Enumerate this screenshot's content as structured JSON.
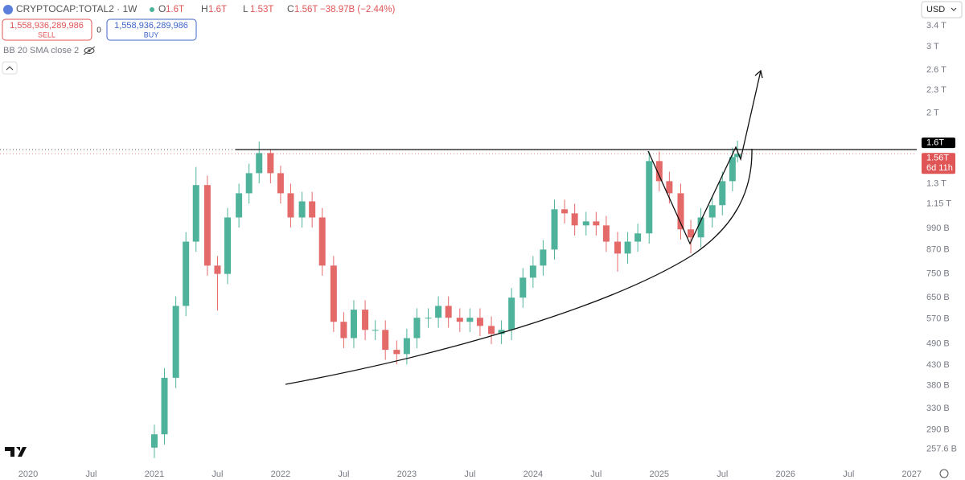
{
  "symbol": "CRYPTOCAP:TOTAL2 · 1W",
  "legend_values": [
    {
      "key": "O",
      "value": "1.6T"
    },
    {
      "key": "H",
      "value": "1.6T"
    },
    {
      "key": "L",
      "value": "1.53T"
    },
    {
      "key": "C",
      "value": "1.56T"
    }
  ],
  "change": "−38.97B (−2.44%)",
  "order_panel": {
    "sell_price": "1,558,936,289,986",
    "sell_label": "SELL",
    "spread": "0",
    "buy_price": "1,558,936,289,986",
    "buy_label": "BUY"
  },
  "indicator": "BB 20 SMA close 2",
  "currency": "USD",
  "chart_data": {
    "type": "candlestick",
    "log": true,
    "grid": false,
    "up_color": "#4fb39b",
    "down_color": "#e46a6a",
    "xlim": [
      2019.777,
      2027.04
    ],
    "xticks": [
      2020,
      {
        "value": 2020.5,
        "label": "Jul"
      },
      2021,
      {
        "value": 2021.5,
        "label": "Jul"
      },
      2022,
      {
        "value": 2022.5,
        "label": "Jul"
      },
      2023,
      {
        "value": 2023.5,
        "label": "Jul"
      },
      2024,
      {
        "value": 2024.5,
        "label": "Jul"
      },
      2025,
      {
        "value": 2025.5,
        "label": "Jul"
      },
      2026,
      {
        "value": 2026.5,
        "label": "Jul"
      },
      2027
    ],
    "ylim": [
      232,
      3984
    ],
    "yticks": [
      {
        "value": 3400,
        "label": "3.4 T"
      },
      {
        "value": 3000,
        "label": "3 T"
      },
      {
        "value": 2600,
        "label": "2.6 T"
      },
      {
        "value": 2300,
        "label": "2.3 T"
      },
      {
        "value": 2000,
        "label": "2 T"
      },
      {
        "value": 1300,
        "label": "1.3 T"
      },
      {
        "value": 1150,
        "label": "1.15 T"
      },
      {
        "value": 990,
        "label": "990 B"
      },
      {
        "value": 870,
        "label": "870 B"
      },
      {
        "value": 750,
        "label": "750 B"
      },
      {
        "value": 650,
        "label": "650 B"
      },
      {
        "value": 570,
        "label": "570 B"
      },
      {
        "value": 490,
        "label": "490 B"
      },
      {
        "value": 430,
        "label": "430 B"
      },
      {
        "value": 380,
        "label": "380 B"
      },
      {
        "value": 330,
        "label": "330 B"
      },
      {
        "value": 290,
        "label": "290 B"
      },
      {
        "value": 257.6,
        "label": "257.6 B"
      }
    ],
    "price_labels": [
      {
        "value": 1600,
        "label": "1.6T",
        "color": "#000000"
      },
      {
        "value": 1560,
        "label": "1.56T",
        "countdown": "6d 11h",
        "color": "#e05555"
      }
    ],
    "candles": {
      "x": [
        2021,
        2021.08,
        2021.17,
        2021.25,
        2021.33,
        2021.42,
        2021.5,
        2021.58,
        2021.67,
        2021.75,
        2021.83,
        2021.92,
        2022,
        2022.08,
        2022.17,
        2022.25,
        2022.33,
        2022.42,
        2022.5,
        2022.58,
        2022.67,
        2022.75,
        2022.83,
        2022.92,
        2023,
        2023.08,
        2023.17,
        2023.25,
        2023.33,
        2023.42,
        2023.5,
        2023.58,
        2023.67,
        2023.75,
        2023.83,
        2023.92,
        2024,
        2024.08,
        2024.17,
        2024.25,
        2024.33,
        2024.42,
        2024.5,
        2024.58,
        2024.67,
        2024.75,
        2024.83,
        2024.92,
        2025,
        2025.08,
        2025.17,
        2025.25,
        2025.33,
        2025.42,
        2025.5,
        2025.58,
        2025.62
      ],
      "open": [
        260,
        282,
        398,
        617,
        913,
        1289,
        789,
        750,
        1058,
        1226,
        1386,
        1567,
        1386,
        1226,
        1058,
        1167,
        1058,
        789,
        560,
        507,
        603,
        533,
        533,
        472,
        460,
        507,
        574,
        574,
        617,
        574,
        560,
        574,
        546,
        520,
        533,
        649,
        733,
        789,
        870,
        1112,
        1085,
        1008,
        1033,
        1008,
        913,
        849,
        913,
        960,
        1492,
        1320,
        1226,
        984,
        937,
        1058,
        1140,
        1320,
        1529
      ],
      "high": [
        299,
        422,
        654,
        968,
        1440,
        1366,
        836,
        1121,
        1300,
        1469,
        1680,
        1600,
        1450,
        1300,
        1237,
        1237,
        1121,
        836,
        594,
        639,
        639,
        565,
        565,
        500,
        537,
        608,
        608,
        654,
        654,
        608,
        608,
        608,
        579,
        565,
        688,
        777,
        836,
        922,
        1179,
        1179,
        1150,
        1095,
        1095,
        1068,
        968,
        968,
        1018,
        1582,
        1582,
        1399,
        1300,
        1043,
        1121,
        1208,
        1399,
        1621,
        1690
      ],
      "low": [
        244,
        265,
        374,
        580,
        858,
        742,
        600,
        705,
        995,
        1152,
        1303,
        1303,
        1152,
        995,
        995,
        995,
        742,
        526,
        477,
        477,
        501,
        501,
        444,
        432,
        432,
        477,
        540,
        540,
        540,
        526,
        526,
        513,
        489,
        489,
        501,
        610,
        689,
        742,
        818,
        1020,
        948,
        948,
        948,
        858,
        760,
        798,
        858,
        902,
        1241,
        1152,
        925,
        850,
        881,
        995,
        1072,
        1241,
        1480
      ],
      "close": [
        282,
        398,
        617,
        913,
        1289,
        789,
        750,
        1058,
        1226,
        1386,
        1567,
        1386,
        1226,
        1058,
        1167,
        1058,
        789,
        560,
        507,
        603,
        533,
        533,
        472,
        460,
        507,
        574,
        574,
        617,
        574,
        560,
        574,
        546,
        520,
        533,
        649,
        733,
        789,
        870,
        1112,
        1085,
        1008,
        1033,
        1008,
        913,
        849,
        913,
        960,
        1492,
        1320,
        1226,
        984,
        937,
        1058,
        1140,
        1320,
        1529,
        1560
      ]
    }
  }
}
